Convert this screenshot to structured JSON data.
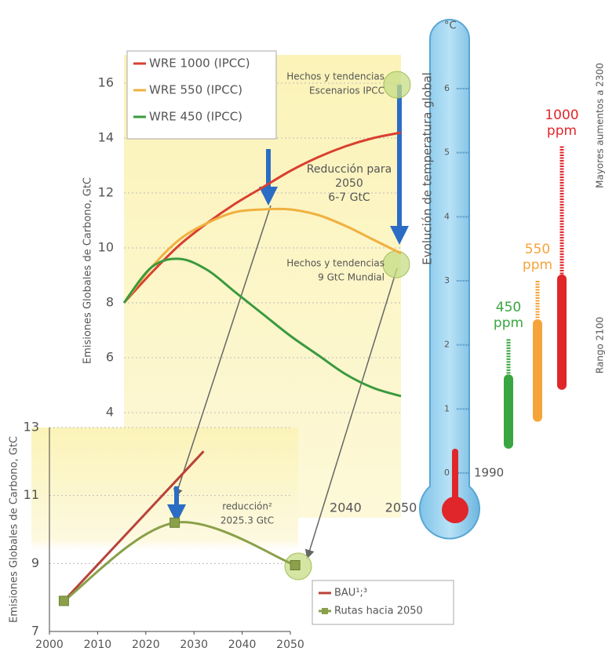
{
  "chart_data": [
    {
      "type": "line",
      "y_label": "Emisiones Globales de Carbono, GtC",
      "x": [
        2000,
        2005,
        2010,
        2015,
        2020,
        2025,
        2030,
        2035,
        2040,
        2045,
        2050
      ],
      "xlim": [
        2000,
        2050
      ],
      "ylim": [
        0.5,
        17
      ],
      "xticks": [
        2040,
        2050
      ],
      "yticks": [
        4,
        6,
        8,
        10,
        12,
        14,
        16
      ],
      "grid": true,
      "smooth": true,
      "legend": "upper left",
      "series": [
        {
          "name": "WRE 1000 (IPCC)",
          "color": "#d9402f",
          "values": [
            8,
            9.1,
            10.1,
            10.9,
            11.6,
            12.2,
            12.8,
            13.3,
            13.7,
            14.0,
            14.2
          ]
        },
        {
          "name": "WRE 550 (IPCC)",
          "color": "#f0b040",
          "values": [
            8,
            9.3,
            10.3,
            10.9,
            11.3,
            11.4,
            11.4,
            11.2,
            10.8,
            10.3,
            9.8
          ]
        },
        {
          "name": "WRE 450 (IPCC)",
          "color": "#3a9a3e",
          "values": [
            8,
            9.3,
            9.6,
            9.2,
            8.4,
            7.6,
            6.8,
            6.1,
            5.4,
            4.9,
            4.6
          ]
        }
      ],
      "annotations": [
        {
          "lines": [
            "Hechos y tendencias",
            "Escenarios IPCC"
          ]
        },
        {
          "lines": [
            "Reducción para",
            "2050",
            "6-7 GtC"
          ]
        },
        {
          "lines": [
            "Hechos y tendencias",
            "9 GtC Mundial"
          ]
        }
      ]
    },
    {
      "type": "line",
      "y_label": "Emisiones Globales de Carbono, GtC",
      "xlim": [
        2000,
        2050
      ],
      "ylim": [
        7,
        13
      ],
      "xticks": [
        2000,
        2010,
        2020,
        2030,
        2040,
        2050
      ],
      "yticks": [
        7,
        9,
        11,
        13
      ],
      "grid": true,
      "smooth": true,
      "legend": "lower right",
      "series": [
        {
          "name": "BAU¹;³",
          "color": "#b8433a",
          "x": [
            2003,
            2032
          ],
          "values": [
            7.9,
            12.3
          ]
        },
        {
          "name": "Rutas hacia 2050",
          "color": "#8aa04a",
          "x": [
            2003,
            2026,
            2051
          ],
          "values": [
            7.9,
            10.2,
            8.95
          ],
          "markers": true
        }
      ],
      "annotations": [
        {
          "lines": [
            "reducción²",
            "2025.3 GtC"
          ]
        }
      ]
    },
    {
      "type": "range",
      "title": "Evolución de temperatura global",
      "unit": "°C",
      "ylim": [
        0,
        6
      ],
      "yticks": [
        0,
        1,
        2,
        3,
        4,
        5,
        6
      ],
      "baseline_label": "1990",
      "mercury": 0.38,
      "series": [
        {
          "name": "450 ppm",
          "color": "#3aa641",
          "values": [
            0.38,
            1.54
          ],
          "max_2300": 2.09
        },
        {
          "name": "550 ppm",
          "color": "#f5a43a",
          "values": [
            0.8,
            2.4
          ],
          "max_2300": 3.0
        },
        {
          "name": "1000 ppm",
          "color": "#e0262b",
          "values": [
            1.3,
            3.1
          ],
          "max_2300": 5.1
        }
      ],
      "side_labels": [
        "Mayores aumentos a 2300",
        "Rango 2100"
      ]
    }
  ]
}
